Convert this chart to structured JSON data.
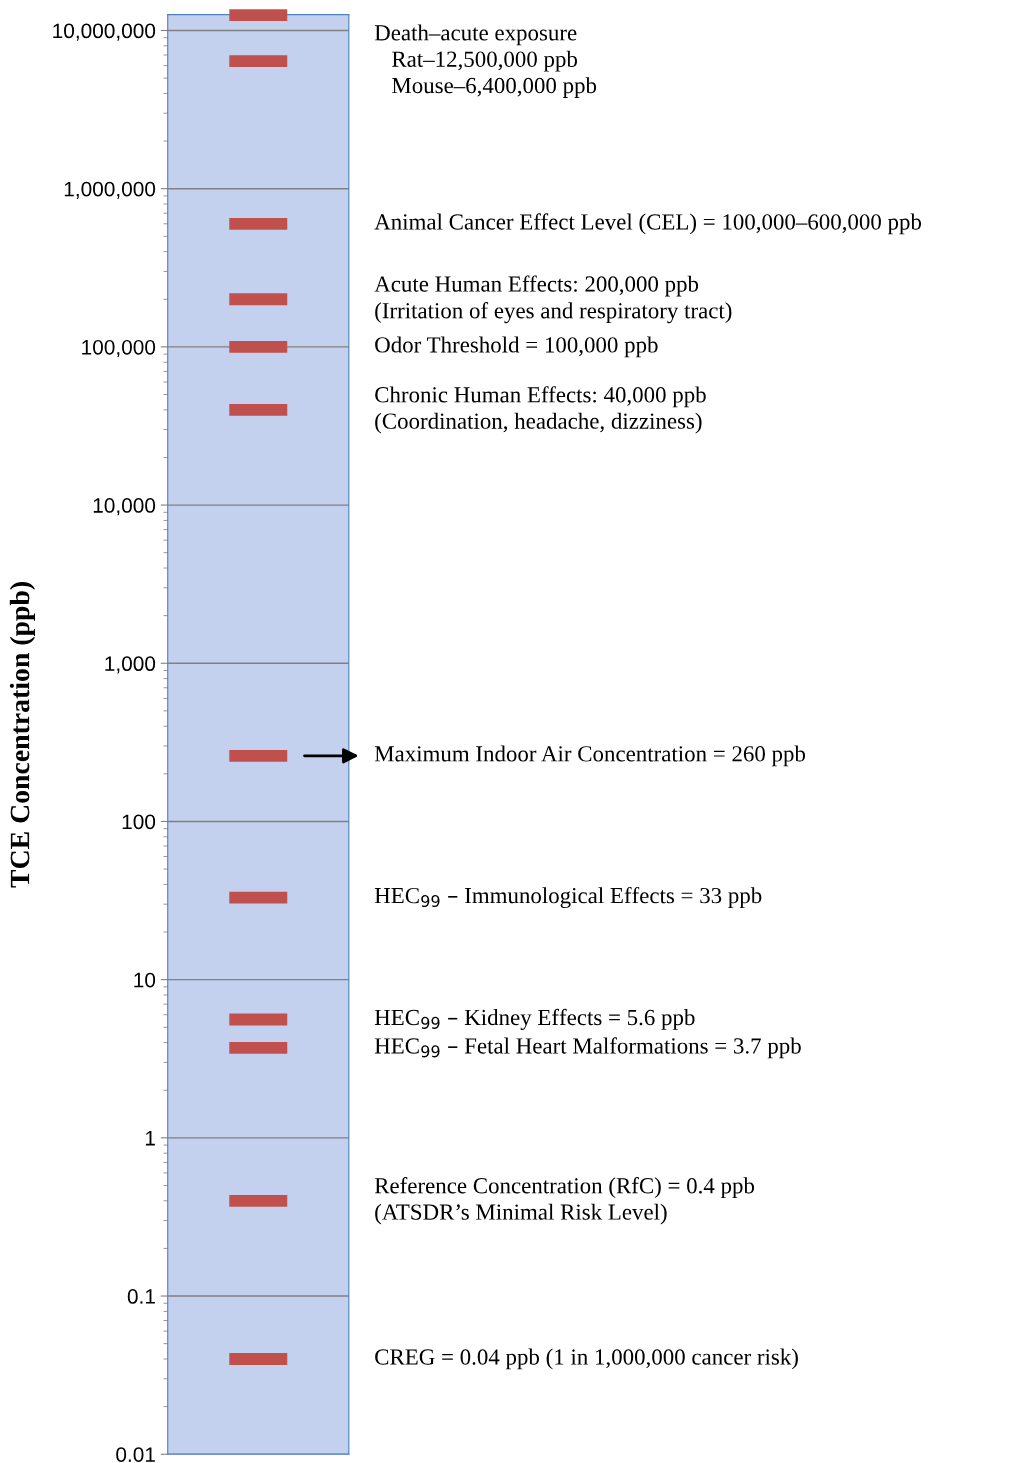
{
  "chart_data": {
    "type": "scatter",
    "ylabel": "TCE Concentration (ppb)",
    "categories": [
      null
    ],
    "ref_lines": [
      {
        "axis": "y",
        "value": 12500000,
        "color": "#c0504d"
      },
      {
        "axis": "y",
        "value": 6400000,
        "color": "#c0504d"
      },
      {
        "axis": "y",
        "value": 600000,
        "color": "#c0504d"
      },
      {
        "axis": "y",
        "value": 200000,
        "color": "#c0504d"
      },
      {
        "axis": "y",
        "value": 100000,
        "color": "#c0504d"
      },
      {
        "axis": "y",
        "value": 40000,
        "color": "#c0504d"
      },
      {
        "axis": "y",
        "value": 260,
        "color": "#c0504d"
      },
      {
        "axis": "y",
        "value": 33,
        "color": "#c0504d"
      },
      {
        "axis": "y",
        "value": 5.6,
        "color": "#c0504d"
      },
      {
        "axis": "y",
        "value": 3.7,
        "color": "#c0504d"
      },
      {
        "axis": "y",
        "value": 0.4,
        "color": "#c0504d"
      },
      {
        "axis": "y",
        "value": 0.04,
        "color": "#c0504d"
      }
    ],
    "log": "y",
    "ylim": [
      0.01,
      12600000
    ],
    "yticks": [
      {
        "value": 0.01,
        "label": "0.01"
      },
      {
        "value": 0.1,
        "label": "0.1"
      },
      {
        "value": 1,
        "label": "1"
      },
      {
        "value": 10,
        "label": "10"
      },
      {
        "value": 100,
        "label": "100"
      },
      {
        "value": 1000,
        "label": "1,000"
      },
      {
        "value": 10000,
        "label": "10,000"
      },
      {
        "value": 100000,
        "label": "100,000"
      },
      {
        "value": 1000000,
        "label": "1,000,000"
      },
      {
        "value": 10000000,
        "label": "10,000,000"
      }
    ],
    "grid": "y",
    "tick_labels": "y",
    "annotations": [
      "Death–acute exposure\n   Rat–12,500,000 ppb\n   Mouse–6,400,000 ppb",
      "Animal Cancer Effect Level (CEL) = 100,000–600,000 ppb",
      "Acute Human Effects: 200,000 ppb\n(Irritation of eyes and respiratory tract)",
      "Odor Threshold = 100,000 ppb",
      "Chronic Human Effects: 40,000 ppb\n(Coordination, headache, dizziness)",
      "Maximum Indoor Air Concentration = 260 ppb",
      "HEC$_{99}$ – Immunological Effects = 33 ppb",
      "HEC$_{99}$ – Kidney Effects = 5.6 ppb",
      "HEC$_{99}$ – Fetal Heart Malformations = 3.7 ppb",
      "Reference Concentration (RfC) = 0.4 ppb\n(ATSDR’s Minimal Risk Level)",
      "CREG = 0.04 ppb (1 in 1,000,000 cancer risk)"
    ]
  }
}
